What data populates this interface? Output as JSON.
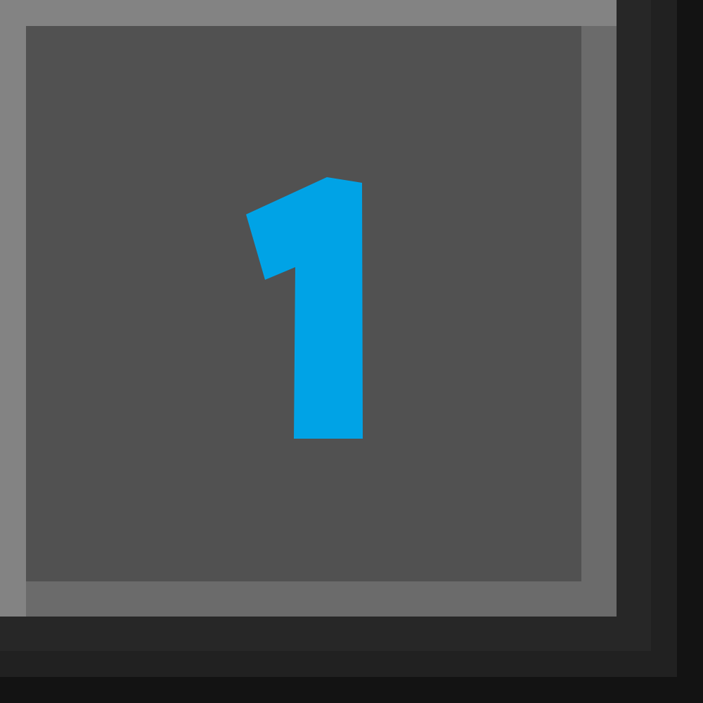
{
  "cell": {
    "number": "1",
    "number_color": "#00a3e6"
  }
}
